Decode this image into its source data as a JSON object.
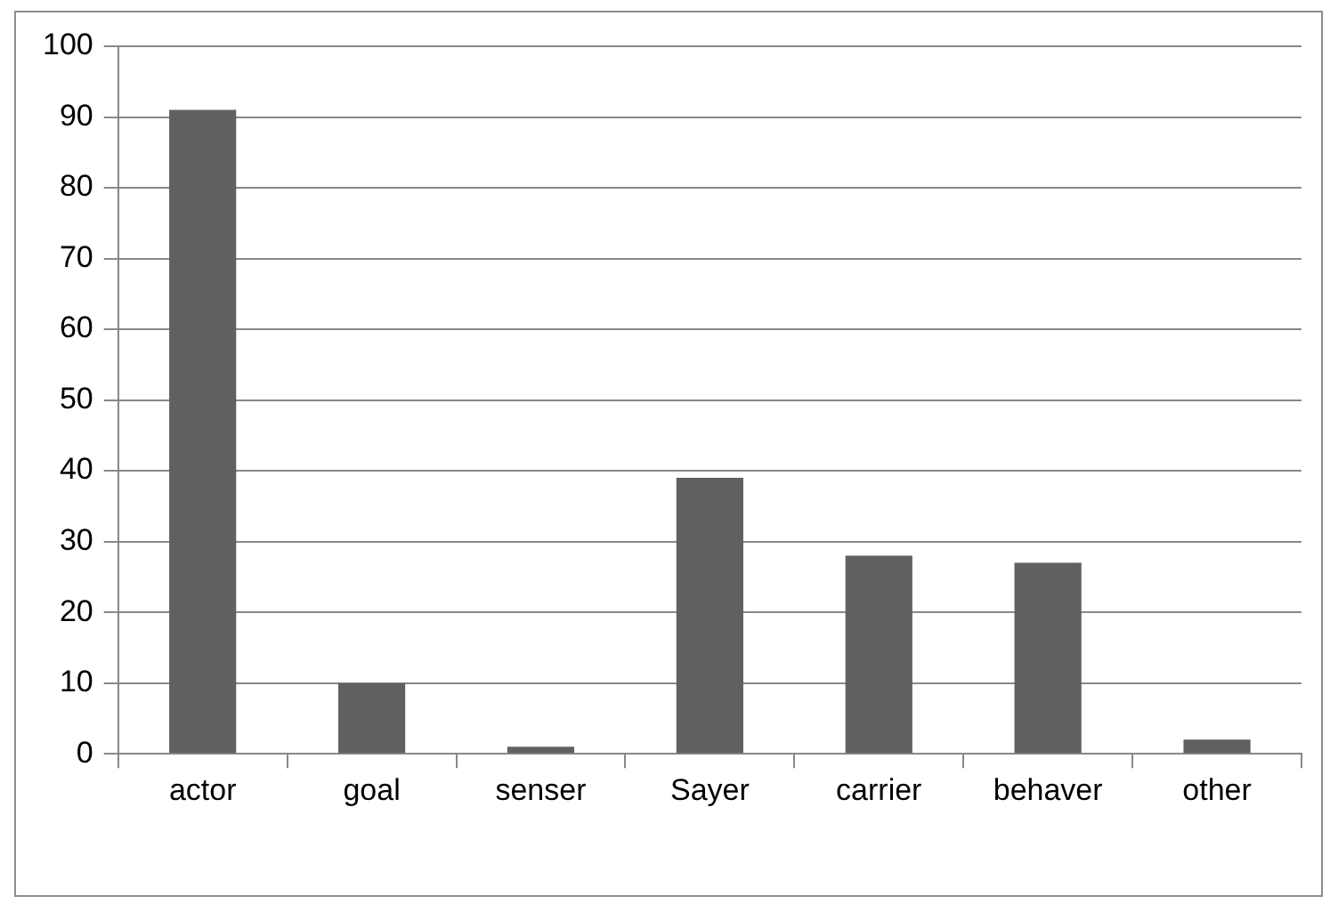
{
  "chart_data": {
    "type": "bar",
    "categories": [
      "actor",
      "goal",
      "senser",
      "Sayer",
      "carrier",
      "behaver",
      "other"
    ],
    "values": [
      91,
      10,
      1,
      39,
      28,
      27,
      2
    ],
    "color": "#606060",
    "ylim": [
      0,
      100
    ],
    "yticks": [
      0,
      10,
      20,
      30,
      40,
      50,
      60,
      70,
      80,
      90,
      100
    ],
    "grid": "y",
    "legend": false
  }
}
